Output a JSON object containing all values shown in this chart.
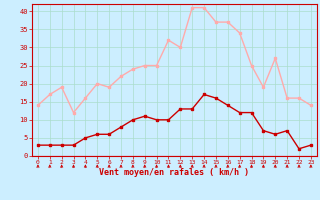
{
  "x": [
    0,
    1,
    2,
    3,
    4,
    5,
    6,
    7,
    8,
    9,
    10,
    11,
    12,
    13,
    14,
    15,
    16,
    17,
    18,
    19,
    20,
    21,
    22,
    23
  ],
  "wind_avg": [
    3,
    3,
    3,
    3,
    5,
    6,
    6,
    8,
    10,
    11,
    10,
    10,
    13,
    13,
    17,
    16,
    14,
    12,
    12,
    7,
    6,
    7,
    2,
    3
  ],
  "wind_gust": [
    14,
    17,
    19,
    12,
    16,
    20,
    19,
    22,
    24,
    25,
    25,
    32,
    30,
    41,
    41,
    37,
    37,
    34,
    25,
    19,
    27,
    16,
    16,
    14
  ],
  "avg_color": "#cc0000",
  "gust_color": "#ffaaaa",
  "bg_color": "#cceeff",
  "grid_color": "#aaddcc",
  "xlabel": "Vent moyen/en rafales ( km/h )",
  "xlabel_color": "#cc0000",
  "tick_color": "#cc0000",
  "spine_color": "#cc0000",
  "ylim": [
    0,
    42
  ],
  "yticks": [
    0,
    5,
    10,
    15,
    20,
    25,
    30,
    35,
    40
  ]
}
